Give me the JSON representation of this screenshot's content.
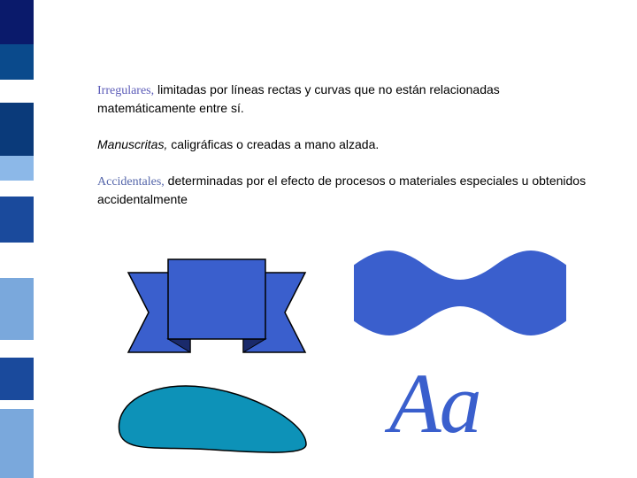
{
  "sidebar": {
    "stripes": [
      {
        "color": "#0a1a6b",
        "h": 50
      },
      {
        "color": "#0a4a8c",
        "h": 40
      },
      {
        "color": "#ffffff",
        "h": 26
      },
      {
        "color": "#0a3a7a",
        "h": 60
      },
      {
        "color": "#8cb8e8",
        "h": 28
      },
      {
        "color": "#ffffff",
        "h": 18
      },
      {
        "color": "#1a4a9c",
        "h": 52
      },
      {
        "color": "#ffffff",
        "h": 40
      },
      {
        "color": "#7aa8dc",
        "h": 70
      },
      {
        "color": "#ffffff",
        "h": 20
      },
      {
        "color": "#1a4a9c",
        "h": 48
      },
      {
        "color": "#ffffff",
        "h": 10
      },
      {
        "color": "#7aa8dc",
        "h": 78
      }
    ]
  },
  "paragraphs": {
    "p1": {
      "term": "Irregulares,",
      "body": " limitadas por líneas rectas y curvas que no están relacionadas matemáticamente entre sí."
    },
    "p2": {
      "term": "Manuscritas,",
      "body": " caligráficas o creadas a mano alzada."
    },
    "p3": {
      "term": "Accidentales,",
      "body": " determinadas por el efecto de procesos o materiales especiales u obtenidos accidentalmente"
    }
  },
  "shapes": {
    "ribbon": {
      "fill": "#3a5fcd",
      "stroke": "#000000"
    },
    "wave": {
      "fill": "#3a5fcd",
      "stroke": "#3a5fcd"
    },
    "blob": {
      "fill": "#0d92b8",
      "stroke": "#000000"
    }
  },
  "aa": {
    "text": "Aa",
    "color": "#3a5fcd",
    "fontsize": 96
  }
}
